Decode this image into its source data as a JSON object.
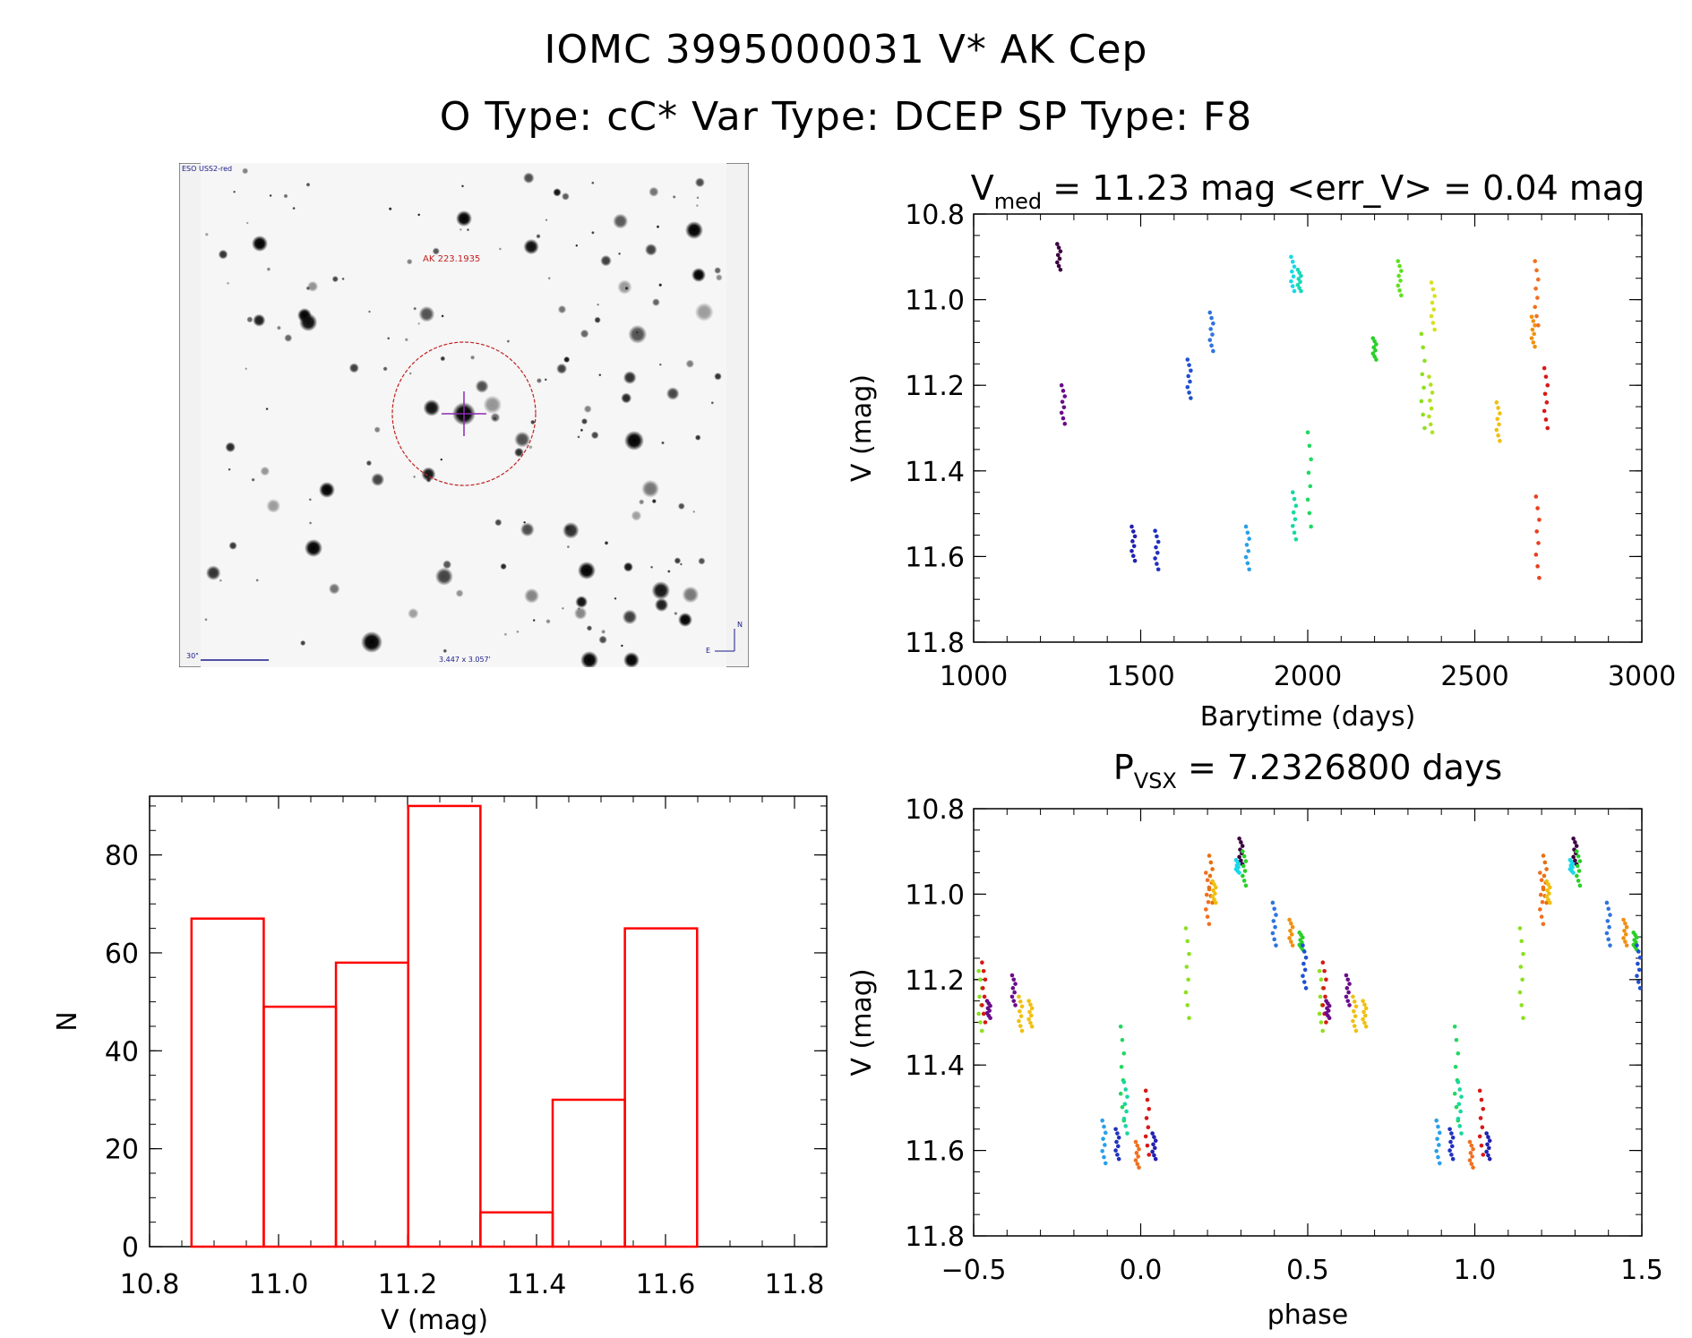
{
  "header": {
    "line1": "IOMC 3995000031   V* AK Cep",
    "line2": "O Type: cC*  Var Type: DCEP  SP Type: F8"
  },
  "finder": {
    "survey_label": "ESO USS2-red",
    "target_label": "AK 223.1935",
    "scale_label": "30\"",
    "size_label": "3.447 x 3.057'",
    "north_label": "N",
    "east_label": "E"
  },
  "chart_data": [
    {
      "type": "scatter",
      "title_prefix": "V",
      "title_sub": "med",
      "title_rest": " = 11.23 mag <err_V> = 0.04 mag",
      "xlabel": "Barytime (days)",
      "ylabel": "V (mag)",
      "xlim": [
        1000,
        3000
      ],
      "ylim": [
        10.8,
        11.8
      ],
      "y_inverted": true,
      "xticks": [
        1000,
        1500,
        2000,
        2500,
        3000
      ],
      "xtick_labels": [
        "1000",
        "1500",
        "2000",
        "2500",
        "3000"
      ],
      "yticks": [
        10.8,
        11.0,
        11.2,
        11.4,
        11.6,
        11.8
      ],
      "ytick_labels": [
        "10.8",
        "11.0",
        "11.2",
        "11.4",
        "11.6",
        "11.8"
      ],
      "groups": [
        {
          "x": 1255,
          "ymin": 10.87,
          "ymax": 10.93,
          "color": "#3a0040"
        },
        {
          "x": 1268,
          "ymin": 11.2,
          "ymax": 11.29,
          "color": "#6a0c8a"
        },
        {
          "x": 1478,
          "ymin": 11.53,
          "ymax": 11.61,
          "color": "#2020b0"
        },
        {
          "x": 1548,
          "ymin": 11.54,
          "ymax": 11.63,
          "color": "#2030c0"
        },
        {
          "x": 1645,
          "ymin": 11.14,
          "ymax": 11.23,
          "color": "#2050d0"
        },
        {
          "x": 1712,
          "ymin": 11.03,
          "ymax": 11.12,
          "color": "#2f74dd"
        },
        {
          "x": 1820,
          "ymin": 11.53,
          "ymax": 11.63,
          "color": "#2aa0e8"
        },
        {
          "x": 1955,
          "ymin": 10.9,
          "ymax": 10.98,
          "color": "#19d8e8"
        },
        {
          "x": 1975,
          "ymin": 10.93,
          "ymax": 10.98,
          "color": "#18d8b8"
        },
        {
          "x": 1960,
          "ymin": 11.45,
          "ymax": 11.56,
          "color": "#18d8a0"
        },
        {
          "x": 2005,
          "ymin": 11.31,
          "ymax": 11.53,
          "color": "#22d860"
        },
        {
          "x": 2200,
          "ymin": 11.09,
          "ymax": 11.14,
          "color": "#28d028"
        },
        {
          "x": 2275,
          "ymin": 10.91,
          "ymax": 10.99,
          "color": "#60e020"
        },
        {
          "x": 2345,
          "ymin": 11.08,
          "ymax": 11.3,
          "color": "#8de020"
        },
        {
          "x": 2368,
          "ymin": 11.18,
          "ymax": 11.31,
          "color": "#b2e020"
        },
        {
          "x": 2375,
          "ymin": 10.96,
          "ymax": 11.07,
          "color": "#d8e020"
        },
        {
          "x": 2570,
          "ymin": 11.24,
          "ymax": 11.33,
          "color": "#f0c010"
        },
        {
          "x": 2675,
          "ymin": 11.04,
          "ymax": 11.11,
          "color": "#f09010"
        },
        {
          "x": 2685,
          "ymin": 10.91,
          "ymax": 11.06,
          "color": "#f07020"
        },
        {
          "x": 2688,
          "ymin": 11.46,
          "ymax": 11.65,
          "color": "#e84020"
        },
        {
          "x": 2713,
          "ymin": 11.16,
          "ymax": 11.3,
          "color": "#d81818"
        }
      ]
    },
    {
      "type": "scatter",
      "title_prefix": "P",
      "title_sub": "VSX",
      "title_rest": " = 7.2326800 days",
      "xlabel": "phase",
      "ylabel": "V (mag)",
      "xlim": [
        -0.5,
        1.5
      ],
      "ylim": [
        10.8,
        11.8
      ],
      "y_inverted": true,
      "xticks": [
        -0.5,
        0.0,
        0.5,
        1.0,
        1.5
      ],
      "xtick_labels": [
        "−0.5",
        "0.0",
        "0.5",
        "1.0",
        "1.5"
      ],
      "yticks": [
        10.8,
        11.0,
        11.2,
        11.4,
        11.6,
        11.8
      ],
      "ytick_labels": [
        "10.8",
        "11.0",
        "11.2",
        "11.4",
        "11.6",
        "11.8"
      ],
      "groups": [
        {
          "x": -0.48,
          "ymin": 11.18,
          "ymax": 11.32,
          "color": "#8de020"
        },
        {
          "x": -0.47,
          "ymin": 11.16,
          "ymax": 11.3,
          "color": "#d81818"
        },
        {
          "x": -0.455,
          "ymin": 11.25,
          "ymax": 11.29,
          "color": "#6a0c8a"
        },
        {
          "x": -0.38,
          "ymin": 11.19,
          "ymax": 11.26,
          "color": "#6a0c8a"
        },
        {
          "x": -0.36,
          "ymin": 11.24,
          "ymax": 11.32,
          "color": "#f0c010"
        },
        {
          "x": -0.33,
          "ymin": 11.25,
          "ymax": 11.31,
          "color": "#f0c010"
        },
        {
          "x": -0.11,
          "ymin": 11.53,
          "ymax": 11.63,
          "color": "#2aa0e8"
        },
        {
          "x": -0.07,
          "ymin": 11.55,
          "ymax": 11.62,
          "color": "#2030c0"
        },
        {
          "x": -0.055,
          "ymin": 11.31,
          "ymax": 11.53,
          "color": "#22d860"
        },
        {
          "x": -0.045,
          "ymin": 11.44,
          "ymax": 11.56,
          "color": "#18d8a0"
        },
        {
          "x": -0.01,
          "ymin": 11.58,
          "ymax": 11.64,
          "color": "#f07020"
        },
        {
          "x": 0.02,
          "ymin": 11.46,
          "ymax": 11.61,
          "color": "#d81818"
        },
        {
          "x": 0.04,
          "ymin": 11.56,
          "ymax": 11.62,
          "color": "#2020b0"
        },
        {
          "x": 0.14,
          "ymin": 11.08,
          "ymax": 11.29,
          "color": "#8de020"
        },
        {
          "x": 0.2,
          "ymin": 10.95,
          "ymax": 11.07,
          "color": "#f07020"
        },
        {
          "x": 0.21,
          "ymin": 10.91,
          "ymax": 11.02,
          "color": "#e87010"
        },
        {
          "x": 0.22,
          "ymin": 10.97,
          "ymax": 11.02,
          "color": "#f0c010"
        },
        {
          "x": 0.29,
          "ymin": 10.92,
          "ymax": 10.95,
          "color": "#19d8e8"
        },
        {
          "x": 0.3,
          "ymin": 10.87,
          "ymax": 10.93,
          "color": "#3a0040"
        },
        {
          "x": 0.31,
          "ymin": 10.9,
          "ymax": 10.98,
          "color": "#28d028"
        },
        {
          "x": 0.4,
          "ymin": 11.02,
          "ymax": 11.12,
          "color": "#2f74dd"
        },
        {
          "x": 0.45,
          "ymin": 11.06,
          "ymax": 11.12,
          "color": "#f09010"
        },
        {
          "x": 0.48,
          "ymin": 11.09,
          "ymax": 11.13,
          "color": "#28d028"
        },
        {
          "x": 0.49,
          "ymin": 11.12,
          "ymax": 11.22,
          "color": "#2050d0"
        },
        {
          "x": 0.54,
          "ymin": 11.18,
          "ymax": 11.32,
          "color": "#8de020"
        },
        {
          "x": 0.55,
          "ymin": 11.16,
          "ymax": 11.3,
          "color": "#d81818"
        },
        {
          "x": 0.56,
          "ymin": 11.25,
          "ymax": 11.29,
          "color": "#6a0c8a"
        },
        {
          "x": 0.62,
          "ymin": 11.19,
          "ymax": 11.26,
          "color": "#6a0c8a"
        },
        {
          "x": 0.64,
          "ymin": 11.24,
          "ymax": 11.32,
          "color": "#f0c010"
        },
        {
          "x": 0.67,
          "ymin": 11.25,
          "ymax": 11.31,
          "color": "#f0c010"
        },
        {
          "x": 0.89,
          "ymin": 11.53,
          "ymax": 11.63,
          "color": "#2aa0e8"
        },
        {
          "x": 0.93,
          "ymin": 11.55,
          "ymax": 11.62,
          "color": "#2030c0"
        },
        {
          "x": 0.945,
          "ymin": 11.31,
          "ymax": 11.53,
          "color": "#22d860"
        },
        {
          "x": 0.955,
          "ymin": 11.44,
          "ymax": 11.56,
          "color": "#18d8a0"
        },
        {
          "x": 0.99,
          "ymin": 11.58,
          "ymax": 11.64,
          "color": "#f07020"
        },
        {
          "x": 1.02,
          "ymin": 11.46,
          "ymax": 11.61,
          "color": "#d81818"
        },
        {
          "x": 1.04,
          "ymin": 11.56,
          "ymax": 11.62,
          "color": "#2020b0"
        },
        {
          "x": 1.14,
          "ymin": 11.08,
          "ymax": 11.29,
          "color": "#8de020"
        },
        {
          "x": 1.2,
          "ymin": 10.95,
          "ymax": 11.07,
          "color": "#f07020"
        },
        {
          "x": 1.21,
          "ymin": 10.91,
          "ymax": 11.02,
          "color": "#e87010"
        },
        {
          "x": 1.22,
          "ymin": 10.97,
          "ymax": 11.02,
          "color": "#f0c010"
        },
        {
          "x": 1.29,
          "ymin": 10.92,
          "ymax": 10.95,
          "color": "#19d8e8"
        },
        {
          "x": 1.3,
          "ymin": 10.87,
          "ymax": 10.93,
          "color": "#3a0040"
        },
        {
          "x": 1.31,
          "ymin": 10.9,
          "ymax": 10.98,
          "color": "#28d028"
        },
        {
          "x": 1.4,
          "ymin": 11.02,
          "ymax": 11.12,
          "color": "#2f74dd"
        },
        {
          "x": 1.45,
          "ymin": 11.06,
          "ymax": 11.12,
          "color": "#f09010"
        },
        {
          "x": 1.48,
          "ymin": 11.09,
          "ymax": 11.13,
          "color": "#28d028"
        },
        {
          "x": 1.49,
          "ymin": 11.12,
          "ymax": 11.22,
          "color": "#2050d0"
        }
      ]
    },
    {
      "type": "bar",
      "subtype": "histogram",
      "xlabel": "V (mag)",
      "ylabel": "N",
      "xlim": [
        10.8,
        11.85
      ],
      "ylim": [
        0,
        92
      ],
      "xticks": [
        10.8,
        11.0,
        11.2,
        11.4,
        11.6,
        11.8
      ],
      "xtick_labels": [
        "10.8",
        "11.0",
        "11.2",
        "11.4",
        "11.6",
        "11.8"
      ],
      "yticks": [
        0,
        20,
        40,
        60,
        80
      ],
      "ytick_labels": [
        "0",
        "20",
        "40",
        "60",
        "80"
      ],
      "bar_color": "#ff0000",
      "bins": [
        {
          "left": 10.865,
          "right": 10.977,
          "count": 67
        },
        {
          "left": 10.977,
          "right": 11.089,
          "count": 49
        },
        {
          "left": 11.089,
          "right": 11.201,
          "count": 58
        },
        {
          "left": 11.201,
          "right": 11.313,
          "count": 90
        },
        {
          "left": 11.313,
          "right": 11.425,
          "count": 7
        },
        {
          "left": 11.425,
          "right": 11.537,
          "count": 30
        },
        {
          "left": 11.537,
          "right": 11.649,
          "count": 65
        }
      ]
    }
  ]
}
